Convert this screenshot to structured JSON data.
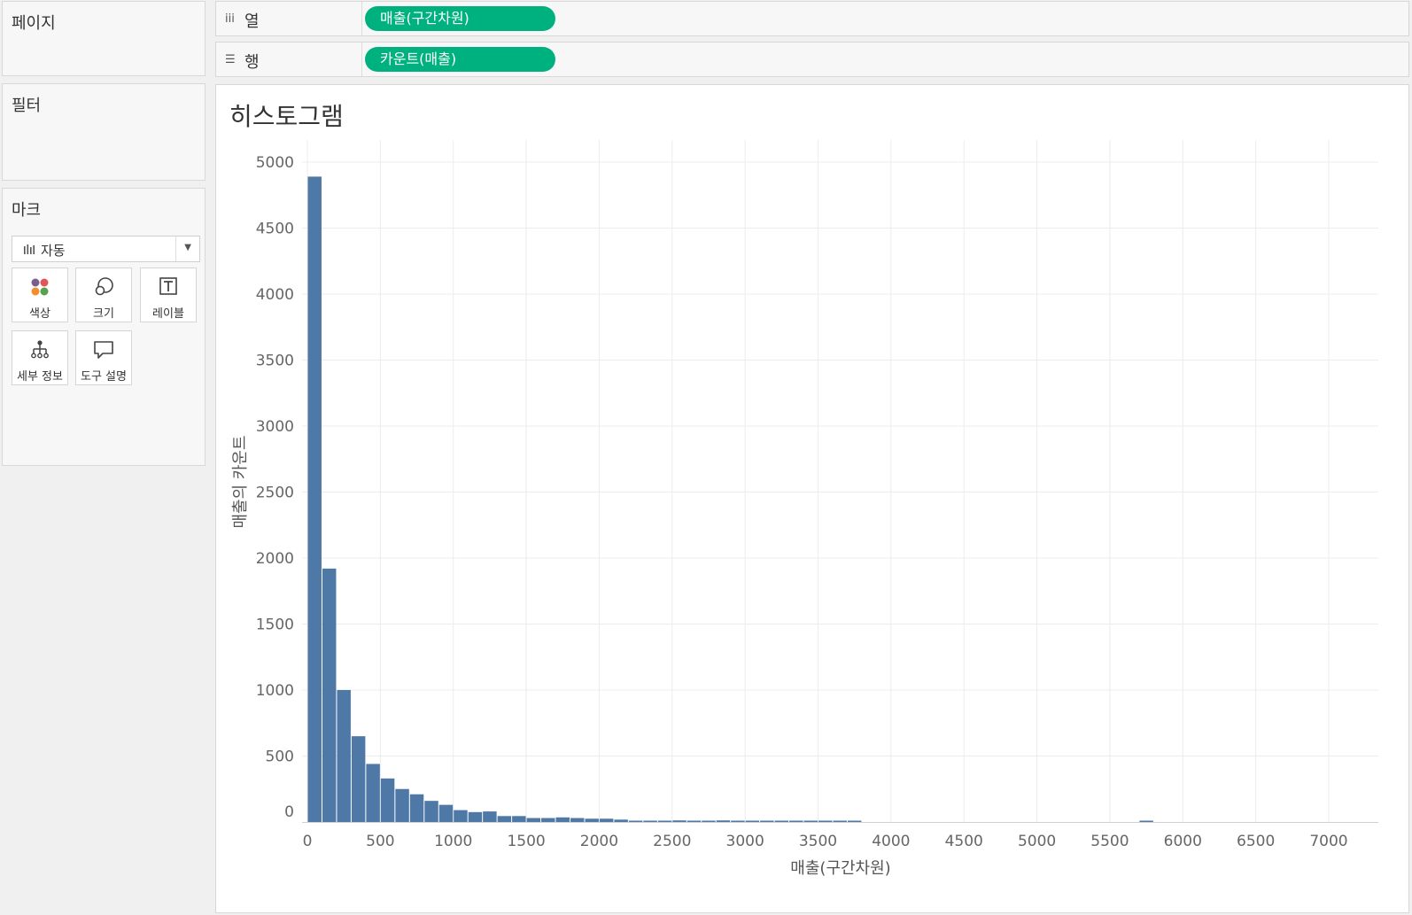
{
  "left_panel": {
    "pages_title": "페이지",
    "filters_title": "필터",
    "marks": {
      "title": "마크",
      "mark_type": "자동",
      "buttons": [
        {
          "label": "색상",
          "icon": "color-dots-icon"
        },
        {
          "label": "크기",
          "icon": "size-icon"
        },
        {
          "label": "레이블",
          "icon": "label-text-icon"
        },
        {
          "label": "세부 정보",
          "icon": "detail-tree-icon"
        },
        {
          "label": "도구 설명",
          "icon": "tooltip-bubble-icon"
        }
      ]
    }
  },
  "shelves": {
    "columns": {
      "label": "열",
      "icon": "columns-icon",
      "pill": "매출(구간차원)"
    },
    "rows": {
      "label": "행",
      "icon": "rows-icon",
      "pill": "카운트(매출)"
    }
  },
  "colors": {
    "pill": "#00b180",
    "bar": "#4e79a7",
    "grid": "#ececec",
    "tick_text": "#666666"
  },
  "sheet_title": "히스토그램",
  "chart_data": {
    "type": "bar",
    "title": "히스토그램",
    "xlabel": "매출(구간차원)",
    "ylabel": "매출의 카운트",
    "bin_width": 100,
    "xlim": [
      -50,
      7300
    ],
    "ylim": [
      0,
      5100
    ],
    "x_ticks": [
      0,
      500,
      1000,
      1500,
      2000,
      2500,
      3000,
      3500,
      4000,
      4500,
      5000,
      5500,
      6000,
      6500,
      7000
    ],
    "y_ticks": [
      0,
      500,
      1000,
      1500,
      2000,
      2500,
      3000,
      3500,
      4000,
      4500,
      5000
    ],
    "grid": true,
    "bins": [
      {
        "x": 0,
        "count": 4890
      },
      {
        "x": 100,
        "count": 1920
      },
      {
        "x": 200,
        "count": 1000
      },
      {
        "x": 300,
        "count": 650
      },
      {
        "x": 400,
        "count": 440
      },
      {
        "x": 500,
        "count": 330
      },
      {
        "x": 600,
        "count": 250
      },
      {
        "x": 700,
        "count": 210
      },
      {
        "x": 800,
        "count": 160
      },
      {
        "x": 900,
        "count": 130
      },
      {
        "x": 1000,
        "count": 90
      },
      {
        "x": 1100,
        "count": 75
      },
      {
        "x": 1200,
        "count": 80
      },
      {
        "x": 1300,
        "count": 45
      },
      {
        "x": 1400,
        "count": 45
      },
      {
        "x": 1500,
        "count": 30
      },
      {
        "x": 1600,
        "count": 30
      },
      {
        "x": 1700,
        "count": 35
      },
      {
        "x": 1800,
        "count": 30
      },
      {
        "x": 1900,
        "count": 25
      },
      {
        "x": 2000,
        "count": 25
      },
      {
        "x": 2100,
        "count": 18
      },
      {
        "x": 2200,
        "count": 10
      },
      {
        "x": 2300,
        "count": 8
      },
      {
        "x": 2400,
        "count": 8
      },
      {
        "x": 2500,
        "count": 12
      },
      {
        "x": 2600,
        "count": 8
      },
      {
        "x": 2700,
        "count": 8
      },
      {
        "x": 2800,
        "count": 12
      },
      {
        "x": 2900,
        "count": 4
      },
      {
        "x": 3000,
        "count": 6
      },
      {
        "x": 3100,
        "count": 4
      },
      {
        "x": 3200,
        "count": 6
      },
      {
        "x": 3300,
        "count": 2
      },
      {
        "x": 3400,
        "count": 2
      },
      {
        "x": 3500,
        "count": 3
      },
      {
        "x": 3600,
        "count": 2
      },
      {
        "x": 3700,
        "count": 2
      },
      {
        "x": 5700,
        "count": 2
      }
    ]
  }
}
